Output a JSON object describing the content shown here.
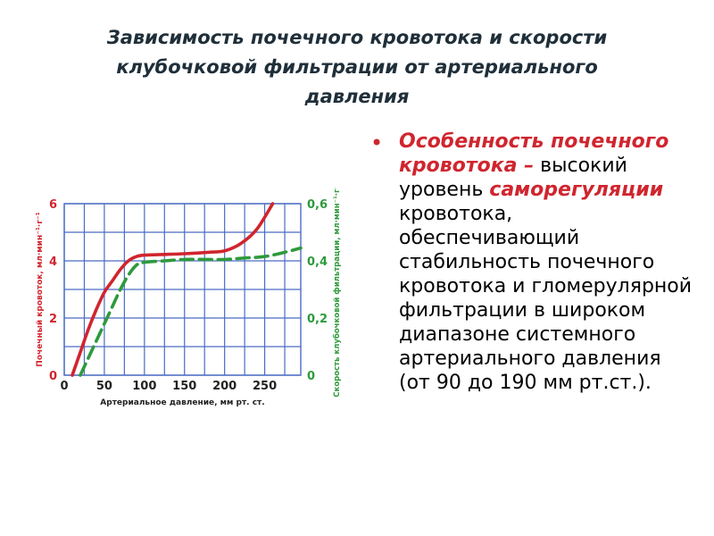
{
  "slide": {
    "title_lines": [
      "Зависимость  почечного кровотока  и скорости",
      "клубочковой фильтрации от артериального",
      "давления"
    ],
    "bullet": {
      "highlight1": "Особенность почечного кровотока –",
      "text1": " высокий уровень ",
      "highlight2": "саморегуляции",
      "text2": " кровотока, обеспечивающий стабильность почечного кровотока и гломерулярной фильтрации в широком диапазоне системного артериального давления (от 90 до 190 мм рт.ст.).",
      "bullet_color": "#d0252e"
    }
  },
  "chart_data": {
    "type": "line",
    "xlabel": "Артериальное  давление,  мм рт. ст.",
    "ylabel_left": "Почечный  кровоток,  мл·мин⁻¹·г⁻¹",
    "ylabel_right": "Скорость  клубочковой  фильтрации,  мл·мин⁻¹·г⁻¹",
    "xlim": [
      0,
      295
    ],
    "ylim_left": [
      0,
      6
    ],
    "ylim_right": [
      0,
      0.6
    ],
    "x_ticks": [
      "0",
      "50",
      "100",
      "150",
      "200",
      "250"
    ],
    "y_ticks_left": [
      "0",
      "2",
      "4",
      "6"
    ],
    "y_ticks_right": [
      "0",
      "0,2",
      "0,4",
      "0,6"
    ],
    "grid": true,
    "colors": {
      "grid": "#4a6cc4",
      "left_axis": "#d0252e",
      "right_axis": "#2e9a3c",
      "x_axis": "#222222"
    },
    "series": [
      {
        "axis": "left",
        "color": "#d0252e",
        "dash": "solid",
        "x": [
          10,
          20,
          30,
          40,
          50,
          60,
          70,
          80,
          90,
          100,
          120,
          150,
          180,
          200,
          220,
          240,
          260
        ],
        "values": [
          0,
          0.8,
          1.6,
          2.3,
          2.9,
          3.3,
          3.7,
          4.0,
          4.15,
          4.2,
          4.22,
          4.25,
          4.3,
          4.35,
          4.6,
          5.1,
          6.0
        ]
      },
      {
        "axis": "right",
        "color": "#2e9a3c",
        "dash": "dashed",
        "x": [
          20,
          30,
          40,
          50,
          60,
          70,
          80,
          90,
          100,
          125,
          150,
          175,
          200,
          225,
          250,
          275,
          295
        ],
        "values": [
          0,
          0.06,
          0.12,
          0.18,
          0.24,
          0.3,
          0.35,
          0.385,
          0.395,
          0.4,
          0.405,
          0.405,
          0.405,
          0.41,
          0.415,
          0.43,
          0.445
        ]
      }
    ]
  }
}
